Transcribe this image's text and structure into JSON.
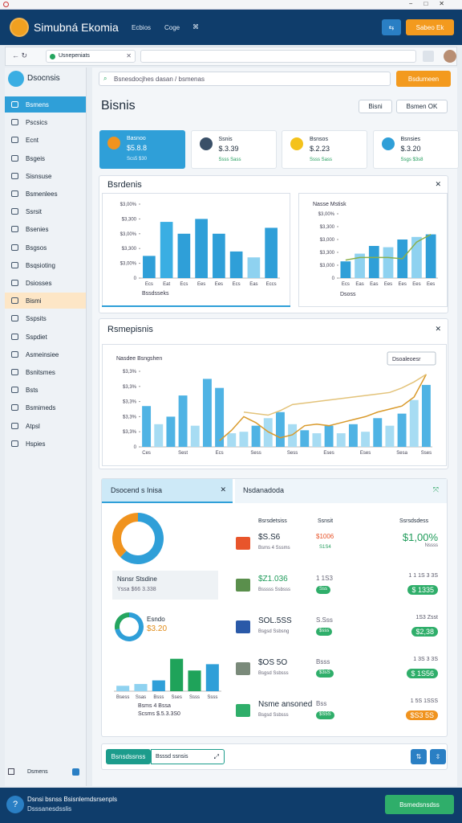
{
  "app": {
    "name": "Simubná Ekomia",
    "nav": [
      "Ecbios",
      "Coge"
    ],
    "action": "Sabeo Ek"
  },
  "browser": {
    "tab": "Usnepeniats"
  },
  "sidebar": {
    "brand": "Dsocnsis",
    "items": [
      "Bsmens",
      "Pscsics",
      "Ecnt",
      "Bsgeis",
      "Sisnsuse",
      "Bsmenlees",
      "Ssrsit",
      "Bsenies",
      "Bsgsos",
      "Bsqsioting",
      "Dsiosses",
      "Bismi",
      "Sspsits",
      "Sspdiet",
      "Asmeinsiee",
      "Bsnitsmes",
      "Bsts",
      "Bsmimeds",
      "Atpsl",
      "Hspies"
    ],
    "footer": "Dsmens"
  },
  "search": {
    "placeholder": "Bsnesdocjhes dasan / bsmenas",
    "button": "Bsdumeen"
  },
  "page": {
    "title": "Bisnis",
    "buttons": [
      "Bisni",
      "Bsmen OK"
    ]
  },
  "kpis": [
    {
      "label": "Basnoo",
      "value": "$5.8.8",
      "note": "Scs5 $30"
    },
    {
      "label": "Ssnis",
      "value": "$.3.39",
      "note": "Ssss Sass"
    },
    {
      "label": "Bsnsos",
      "value": "$.2.23",
      "note": "Ssss Sass"
    },
    {
      "label": "Bsnsies",
      "value": "$.3.20",
      "note": "Ssgs $3s8"
    }
  ],
  "panels": {
    "top": "Bsrdenis",
    "middle": "Rsmepisnis"
  },
  "charts": [
    {
      "type": "bar",
      "caption": "Bssdsseks",
      "ylim": [
        0,
        5
      ],
      "yticks": [
        0,
        {
          "value": 1,
          "label": "$3,00%"
        },
        {
          "value": 2,
          "label": "$3,300"
        },
        {
          "value": 3,
          "label": "$3,00%"
        },
        {
          "value": 4,
          "label": "$3,300"
        },
        {
          "value": 5,
          "label": "$3,00%"
        }
      ],
      "categories": [
        "Ecs",
        "Eat",
        "Ecs",
        "Ees",
        "Ees",
        "Ecs",
        "Eas",
        "Eccs"
      ],
      "series": [
        {
          "type": "bar",
          "values": [
            1.5,
            3.8,
            3.0,
            4.0,
            3.0,
            1.8,
            1.4,
            3.4
          ],
          "colors": [
            "#2f9fd8",
            "#3aaee3",
            "#2f9fd8",
            "#2f9fd8",
            "#2f9fd8",
            "#2f9fd8",
            "#8fd2f0",
            "#2f9fd8"
          ]
        }
      ]
    },
    {
      "type": "combo",
      "title": "Nasse Mstisk",
      "caption": "Dsoss",
      "ylim": [
        0,
        5
      ],
      "yticks": [
        0,
        {
          "value": 1,
          "label": "$3,000"
        },
        {
          "value": 2,
          "label": "$3,300"
        },
        {
          "value": 3,
          "label": "$3,000"
        },
        {
          "value": 4,
          "label": "$3,300"
        },
        {
          "value": 5,
          "label": "$3,00%"
        }
      ],
      "categories": [
        "Ecs",
        "Eas",
        "Eas",
        "Ees",
        "Ees",
        "Ees",
        "Ees"
      ],
      "series": [
        {
          "type": "bar",
          "values": [
            1.3,
            1.9,
            2.5,
            2.4,
            3.0,
            3.2,
            3.4
          ],
          "colors": [
            "#2f9fd8",
            "#8fd2f0",
            "#2f9fd8",
            "#8fd2f0",
            "#2f9fd8",
            "#8fd2f0",
            "#2f9fd8"
          ]
        },
        {
          "type": "line",
          "color": "#8bb04a",
          "values": [
            1.4,
            1.6,
            1.6,
            1.6,
            1.5,
            2.8,
            3.4
          ]
        }
      ]
    },
    {
      "type": "combo",
      "title": "Nasdee Bsngshen",
      "dropdown": "Dsoaleoesr",
      "ylim": [
        0,
        5
      ],
      "yticks": [
        0,
        {
          "value": 1,
          "label": "$3,3%"
        },
        {
          "value": 2,
          "label": "$3,3%"
        },
        {
          "value": 3,
          "label": "$3,3%"
        },
        {
          "value": 4,
          "label": "$3,3%"
        },
        {
          "value": 5,
          "label": "$3,3%"
        }
      ],
      "categories": [
        "Ces",
        null,
        null,
        "Sest",
        null,
        null,
        "Ecs",
        null,
        null,
        "Sess",
        null,
        null,
        "Sess",
        null,
        null,
        "Eses",
        null,
        null,
        "Eses",
        null,
        null,
        "Sesa",
        null,
        "Sses"
      ],
      "series": [
        {
          "type": "bar",
          "values": [
            2.7,
            1.5,
            2.0,
            3.4,
            1.4,
            4.5,
            3.9,
            0.9,
            1.0,
            1.4,
            1.9,
            2.3,
            1.5,
            1.1,
            0.9,
            1.4,
            0.9,
            1.5,
            1.0,
            1.9,
            1.4,
            2.2,
            3.1,
            4.1
          ],
          "colors": [
            "#4fb3e4",
            "#a7dcf3",
            "#4fb3e4",
            "#4fb3e4",
            "#a7dcf3",
            "#4fb3e4",
            "#4fb3e4",
            "#a7dcf3",
            "#a7dcf3",
            "#4fb3e4",
            "#a7dcf3",
            "#4fb3e4",
            "#a7dcf3",
            "#4fb3e4",
            "#a7dcf3",
            "#4fb3e4",
            "#a7dcf3",
            "#4fb3e4",
            "#a7dcf3",
            "#4fb3e4",
            "#a7dcf3",
            "#4fb3e4",
            "#a7dcf3",
            "#4fb3e4"
          ]
        },
        {
          "type": "line",
          "color": "#d99a2b",
          "values": [
            null,
            null,
            null,
            null,
            null,
            null,
            0.4,
            1.1,
            2.0,
            1.6,
            1.0,
            0.6,
            0.8,
            1.4,
            1.5,
            1.4,
            1.6,
            1.8,
            2.0,
            2.3,
            2.5,
            2.7,
            3.3,
            4.8
          ]
        },
        {
          "type": "line",
          "color": "#e3c37a",
          "values": [
            null,
            null,
            null,
            null,
            null,
            null,
            null,
            null,
            2.3,
            2.2,
            2.1,
            2.4,
            2.8,
            2.9,
            3.0,
            3.1,
            3.2,
            3.3,
            3.4,
            3.5,
            3.6,
            3.9,
            4.3,
            4.8
          ]
        }
      ]
    },
    {
      "type": "donut",
      "values": [
        62,
        38
      ],
      "colors": [
        "#2f9fd8",
        "#f0931e"
      ]
    },
    {
      "type": "donut",
      "values": [
        72,
        28
      ],
      "colors": [
        "#2f9fd8",
        "#25a55f"
      ]
    },
    {
      "type": "bar",
      "caption": [
        "Bsms 4 Bssa",
        "Scsms $.5.3.3S0"
      ],
      "ylim": [
        0,
        5
      ],
      "categories": [
        "Bsess",
        "Ssas",
        "Bsss",
        "Sses",
        "Ssss",
        "Ssss"
      ],
      "series": [
        {
          "type": "bar",
          "values": [
            0.6,
            0.8,
            1.2,
            3.6,
            2.3,
            3.0
          ],
          "colors": [
            "#8fd2f0",
            "#8fd2f0",
            "#2f9fd8",
            "#1fa35a",
            "#1fa35a",
            "#2f9fd8"
          ]
        }
      ]
    }
  ],
  "details": {
    "tabs": [
      "Dsocend s Inisa",
      "Nsdanadoda"
    ],
    "stat": {
      "title": "Nsnsr Stsdine",
      "sub": "Yssa $66 3.338"
    },
    "small": {
      "label": "Esndo",
      "value": "$3.20"
    },
    "columns": [
      "Bsrsdetsiss",
      "Ssnsit",
      "Ssrsdsdess"
    ],
    "rows": [
      {
        "name": "$S.S6",
        "sub": "Bsms 4 Sssms",
        "mid": "$1006",
        "badge": "S1S4",
        "right": "$1,00%",
        "note": "Nssss"
      },
      {
        "name": "$Z1.036",
        "sub": "Bsssss Ssbsss",
        "mid": "1 1S3",
        "badge": "Sss",
        "right": "1 1 1S 3 3S",
        "note": "$ 1335"
      },
      {
        "name": "SOL.5SS",
        "sub": "Bsgsd Ssbsng",
        "mid": "S.Sss",
        "badge": "$sss",
        "right": "1S3 Zsst",
        "note": "$2,38"
      },
      {
        "name": "$OS 5O",
        "sub": "Bsgsd Ssbsss",
        "mid": "Bsss",
        "badge": "$3sS",
        "right": "1 3S 3 3S",
        "note": "$ 1S56"
      },
      {
        "name": "Nsme ansoned",
        "sub": "Bsgsd Ssbsss",
        "mid": "Bss",
        "badge": "$S5S",
        "right": "1 5S 1SSS",
        "note": "$S3 5S"
      }
    ]
  },
  "bottom": {
    "tab": "Bsnsdssnss",
    "input": "Bsssd ssnsis"
  },
  "footer": {
    "line1": "Dsnsi bsnss Bsisnlemdsrsenpls",
    "line2": "Dsssanesdsslis",
    "button": "Bsmedsnsdss"
  }
}
